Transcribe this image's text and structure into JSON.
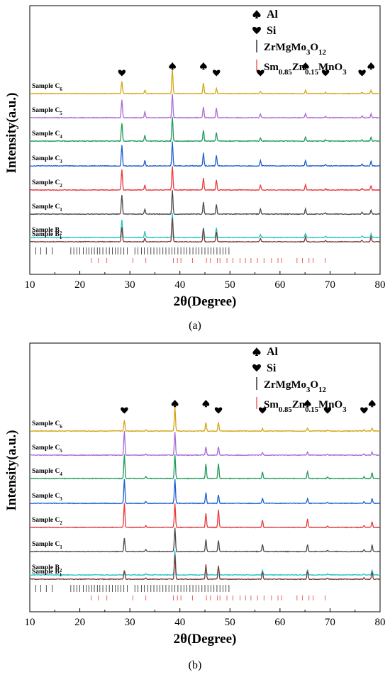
{
  "chart_data": [
    {
      "panel": "(a)",
      "type": "line",
      "xlabel": "2θ(Degree)",
      "ylabel": "Intensity(a.u.)",
      "xlim": [
        10,
        80
      ],
      "x_ticks": [
        10,
        20,
        30,
        40,
        50,
        60,
        70,
        80
      ],
      "grid": false,
      "legend_position": "top-right",
      "legend": [
        {
          "symbol": "spade",
          "label": "Al"
        },
        {
          "symbol": "heart",
          "label": "Si"
        },
        {
          "symbol": "black-line",
          "label": "ZrMgMo3O12",
          "main": "ZrMgMo",
          "sub1": "3",
          "mid": "O",
          "sub2": "12"
        },
        {
          "symbol": "red-line",
          "label": "Sm0.85Zn0.15MnO3",
          "parts": [
            "Sm",
            "0.85",
            "Zn",
            "0.15",
            "MnO",
            "3"
          ]
        }
      ],
      "series": [
        {
          "name": "Sample C6",
          "main": "Sample C",
          "sub": "6",
          "color": "#d4a514"
        },
        {
          "name": "Sample C5",
          "main": "Sample C",
          "sub": "5",
          "color": "#a86ad6"
        },
        {
          "name": "Sample C4",
          "main": "Sample C",
          "sub": "4",
          "color": "#1f9a5a"
        },
        {
          "name": "Sample C3",
          "main": "Sample C",
          "sub": "3",
          "color": "#1a5fd0"
        },
        {
          "name": "Sample C2",
          "main": "Sample C",
          "sub": "2",
          "color": "#e8383d"
        },
        {
          "name": "Sample C1",
          "main": "Sample C",
          "sub": "1",
          "color": "#4a4a4a"
        },
        {
          "name": "Sample B2",
          "main": "Sample B",
          "sub": "2",
          "color": "#22c4c4"
        },
        {
          "name": "Sample B1",
          "main": "Sample B",
          "sub": "1",
          "color": "#7a3b3b"
        }
      ],
      "peaks_2theta": [
        28.4,
        33.0,
        38.5,
        44.7,
        47.3,
        56.1,
        65.1,
        69.1,
        76.4,
        78.2
      ],
      "peak_intensity": {
        "Sample C6": [
          0.5,
          0.15,
          1.0,
          0.45,
          0.22,
          0.1,
          0.14,
          0.05,
          0.06,
          0.13
        ],
        "Sample C5": [
          0.75,
          0.25,
          1.0,
          0.45,
          0.4,
          0.15,
          0.17,
          0.05,
          0.07,
          0.16
        ],
        "Sample C4": [
          0.75,
          0.24,
          1.0,
          0.45,
          0.35,
          0.14,
          0.17,
          0.05,
          0.07,
          0.16
        ],
        "Sample C3": [
          0.85,
          0.22,
          1.0,
          0.55,
          0.45,
          0.22,
          0.22,
          0.05,
          0.07,
          0.2
        ],
        "Sample C2": [
          0.85,
          0.2,
          1.0,
          0.5,
          0.42,
          0.2,
          0.22,
          0.05,
          0.07,
          0.18
        ],
        "Sample C1": [
          0.8,
          0.2,
          1.0,
          0.5,
          0.4,
          0.2,
          0.22,
          0.05,
          0.07,
          0.18
        ],
        "Sample B2": [
          0.75,
          0.25,
          1.0,
          0.4,
          0.4,
          0.12,
          0.16,
          0.05,
          0.07,
          0.15
        ],
        "Sample B1": [
          0.6,
          0.15,
          1.0,
          0.55,
          0.4,
          0.15,
          0.2,
          0.05,
          0.07,
          0.2
        ]
      },
      "markers": [
        {
          "symbol": "heart",
          "x": 28.4
        },
        {
          "symbol": "spade",
          "x": 38.5
        },
        {
          "symbol": "spade",
          "x": 44.7
        },
        {
          "symbol": "heart",
          "x": 47.3
        },
        {
          "symbol": "heart",
          "x": 56.1
        },
        {
          "symbol": "spade",
          "x": 65.1
        },
        {
          "symbol": "heart",
          "x": 69.1
        },
        {
          "symbol": "heart",
          "x": 76.4
        },
        {
          "symbol": "spade",
          "x": 78.2
        }
      ],
      "ref_black_2theta": [
        11.2,
        12.2,
        13.3,
        14.5,
        18.2,
        18.8,
        19.4,
        20.0,
        20.7,
        21.3,
        21.8,
        22.4,
        22.9,
        23.5,
        24.0,
        24.6,
        25.3,
        25.9,
        26.5,
        27.1,
        27.6,
        28.2,
        28.8,
        29.5,
        31.0,
        31.6,
        32.3,
        32.9,
        33.6,
        34.2,
        34.8,
        35.4,
        36.0,
        36.6,
        37.2,
        37.8,
        38.4,
        39.0,
        39.6,
        40.2,
        40.8,
        41.4,
        42.0,
        42.6,
        43.2,
        43.8,
        44.4,
        45.0,
        45.6,
        46.2,
        46.8,
        47.4,
        48.0,
        48.6,
        49.2,
        49.8
      ],
      "ref_red_2theta": [
        22.3,
        23.7,
        25.4,
        30.6,
        33.2,
        38.7,
        39.5,
        40.2,
        42.5,
        45.3,
        46.1,
        47.5,
        48.0,
        49.4,
        50.6,
        52.0,
        53.1,
        54.2,
        55.5,
        56.8,
        58.3,
        59.6,
        60.3,
        63.4,
        64.5,
        65.8,
        66.6,
        69.0
      ]
    },
    {
      "panel": "(b)",
      "type": "line",
      "xlabel": "2θ(Degree)",
      "ylabel": "Intensity(a.u.)",
      "xlim": [
        10,
        80
      ],
      "x_ticks": [
        10,
        20,
        30,
        40,
        50,
        60,
        70,
        80
      ],
      "grid": false,
      "legend_position": "top-right",
      "legend": [
        {
          "symbol": "spade",
          "label": "Al"
        },
        {
          "symbol": "heart",
          "label": "Si"
        },
        {
          "symbol": "black-line",
          "label": "ZrMgMo3O12",
          "main": "ZrMgMo",
          "sub1": "3",
          "mid": "O",
          "sub2": "12"
        },
        {
          "symbol": "red-line",
          "label": "Sm0.85Zn0.15MnO3",
          "parts": [
            "Sm",
            "0.85",
            "Zn",
            "0.15",
            "MnO",
            "3"
          ]
        }
      ],
      "series": [
        {
          "name": "Sample C6",
          "main": "Sample C",
          "sub": "6",
          "color": "#d4a514"
        },
        {
          "name": "Sample C5",
          "main": "Sample C",
          "sub": "5",
          "color": "#a86ad6"
        },
        {
          "name": "Sample C4",
          "main": "Sample C",
          "sub": "4",
          "color": "#1f9a5a"
        },
        {
          "name": "Sample C3",
          "main": "Sample C",
          "sub": "3",
          "color": "#1a5fd0"
        },
        {
          "name": "Sample C2",
          "main": "Sample C",
          "sub": "2",
          "color": "#e8383d"
        },
        {
          "name": "Sample C1",
          "main": "Sample C",
          "sub": "1",
          "color": "#4a4a4a"
        },
        {
          "name": "Sample B2",
          "main": "Sample B",
          "sub": "2",
          "color": "#22c4c4"
        },
        {
          "name": "Sample B1",
          "main": "Sample B",
          "sub": "1",
          "color": "#7a3b3b"
        }
      ],
      "peaks_2theta": [
        28.9,
        33.2,
        39.0,
        45.2,
        47.7,
        56.5,
        65.5,
        69.5,
        76.8,
        78.4
      ],
      "peak_intensity": {
        "Sample C6": [
          0.45,
          0.05,
          1.0,
          0.35,
          0.35,
          0.1,
          0.12,
          0.04,
          0.05,
          0.12
        ],
        "Sample C5": [
          1.0,
          0.05,
          0.95,
          0.35,
          0.35,
          0.1,
          0.12,
          0.04,
          0.05,
          0.12
        ],
        "Sample C4": [
          1.0,
          0.08,
          1.0,
          0.6,
          0.6,
          0.28,
          0.3,
          0.05,
          0.08,
          0.25
        ],
        "Sample C3": [
          1.0,
          0.08,
          1.0,
          0.45,
          0.35,
          0.2,
          0.2,
          0.05,
          0.07,
          0.2
        ],
        "Sample C2": [
          1.0,
          0.08,
          1.0,
          0.6,
          0.75,
          0.3,
          0.35,
          0.05,
          0.08,
          0.25
        ],
        "Sample C1": [
          0.55,
          0.08,
          1.0,
          0.5,
          0.45,
          0.3,
          0.3,
          0.05,
          0.08,
          0.28
        ],
        "Sample B2": [
          0.15,
          0.05,
          1.0,
          0.25,
          0.3,
          0.18,
          0.2,
          0.04,
          0.05,
          0.18
        ],
        "Sample B1": [
          0.35,
          0.05,
          1.0,
          0.6,
          0.55,
          0.3,
          0.35,
          0.05,
          0.08,
          0.3
        ]
      },
      "markers": [
        {
          "symbol": "heart",
          "x": 28.9
        },
        {
          "symbol": "spade",
          "x": 39.0
        },
        {
          "symbol": "spade",
          "x": 45.2
        },
        {
          "symbol": "heart",
          "x": 47.7
        },
        {
          "symbol": "heart",
          "x": 56.5
        },
        {
          "symbol": "spade",
          "x": 65.5
        },
        {
          "symbol": "heart",
          "x": 69.5
        },
        {
          "symbol": "heart",
          "x": 76.8
        },
        {
          "symbol": "spade",
          "x": 78.4
        }
      ],
      "ref_black_2theta": [
        11.2,
        12.2,
        13.3,
        14.5,
        18.2,
        18.8,
        19.4,
        20.0,
        20.7,
        21.3,
        21.8,
        22.4,
        22.9,
        23.5,
        24.0,
        24.6,
        25.3,
        25.9,
        26.5,
        27.1,
        27.6,
        28.2,
        28.8,
        29.5,
        31.0,
        31.6,
        32.3,
        32.9,
        33.6,
        34.2,
        34.8,
        35.4,
        36.0,
        36.6,
        37.2,
        37.8,
        38.4,
        39.0,
        39.6,
        40.2,
        40.8,
        41.4,
        42.0,
        42.6,
        43.2,
        43.8,
        44.4,
        45.0,
        45.6,
        46.2,
        46.8,
        47.4,
        48.0,
        48.6,
        49.2,
        49.8
      ],
      "ref_red_2theta": [
        22.3,
        23.7,
        25.4,
        30.6,
        33.2,
        38.7,
        39.5,
        40.2,
        42.5,
        45.3,
        46.1,
        47.5,
        48.0,
        49.4,
        50.6,
        52.0,
        53.1,
        54.2,
        55.5,
        56.8,
        58.3,
        59.6,
        60.3,
        63.4,
        64.5,
        65.8,
        66.6,
        69.0
      ]
    }
  ],
  "panels": {
    "a_label": "(a)",
    "b_label": "(b)"
  }
}
